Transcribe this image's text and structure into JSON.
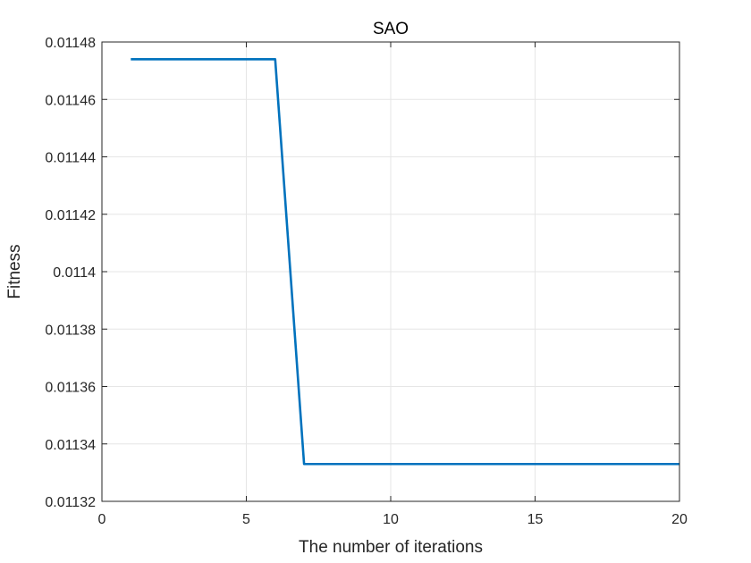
{
  "chart_data": {
    "type": "line",
    "title": "SAO",
    "xlabel": "The number of iterations",
    "ylabel": "Fitness",
    "xlim": [
      0,
      20
    ],
    "ylim": [
      0.01132,
      0.01148
    ],
    "grid": true,
    "xticks": [
      0,
      5,
      10,
      15,
      20
    ],
    "xtick_labels": [
      "0",
      "5",
      "10",
      "15",
      "20"
    ],
    "yticks": [
      0.01132,
      0.01134,
      0.01136,
      0.01138,
      0.0114,
      0.01142,
      0.01144,
      0.01146,
      0.01148
    ],
    "ytick_labels": [
      "0.01132",
      "0.01134",
      "0.01136",
      "0.01138",
      "0.0114",
      "0.01142",
      "0.01144",
      "0.01146",
      "0.01148"
    ],
    "series": [
      {
        "color": "#0072BD",
        "x": [
          1,
          2,
          3,
          4,
          5,
          6,
          7,
          8,
          9,
          10,
          11,
          12,
          13,
          14,
          15,
          16,
          17,
          18,
          19,
          20
        ],
        "y": [
          0.011474,
          0.011474,
          0.011474,
          0.011474,
          0.011474,
          0.011474,
          0.011333,
          0.011333,
          0.011333,
          0.011333,
          0.011333,
          0.011333,
          0.011333,
          0.011333,
          0.011333,
          0.011333,
          0.011333,
          0.011333,
          0.011333,
          0.011333
        ]
      }
    ],
    "grid_color": "#e6e6e6",
    "axis_color": "#262626"
  }
}
